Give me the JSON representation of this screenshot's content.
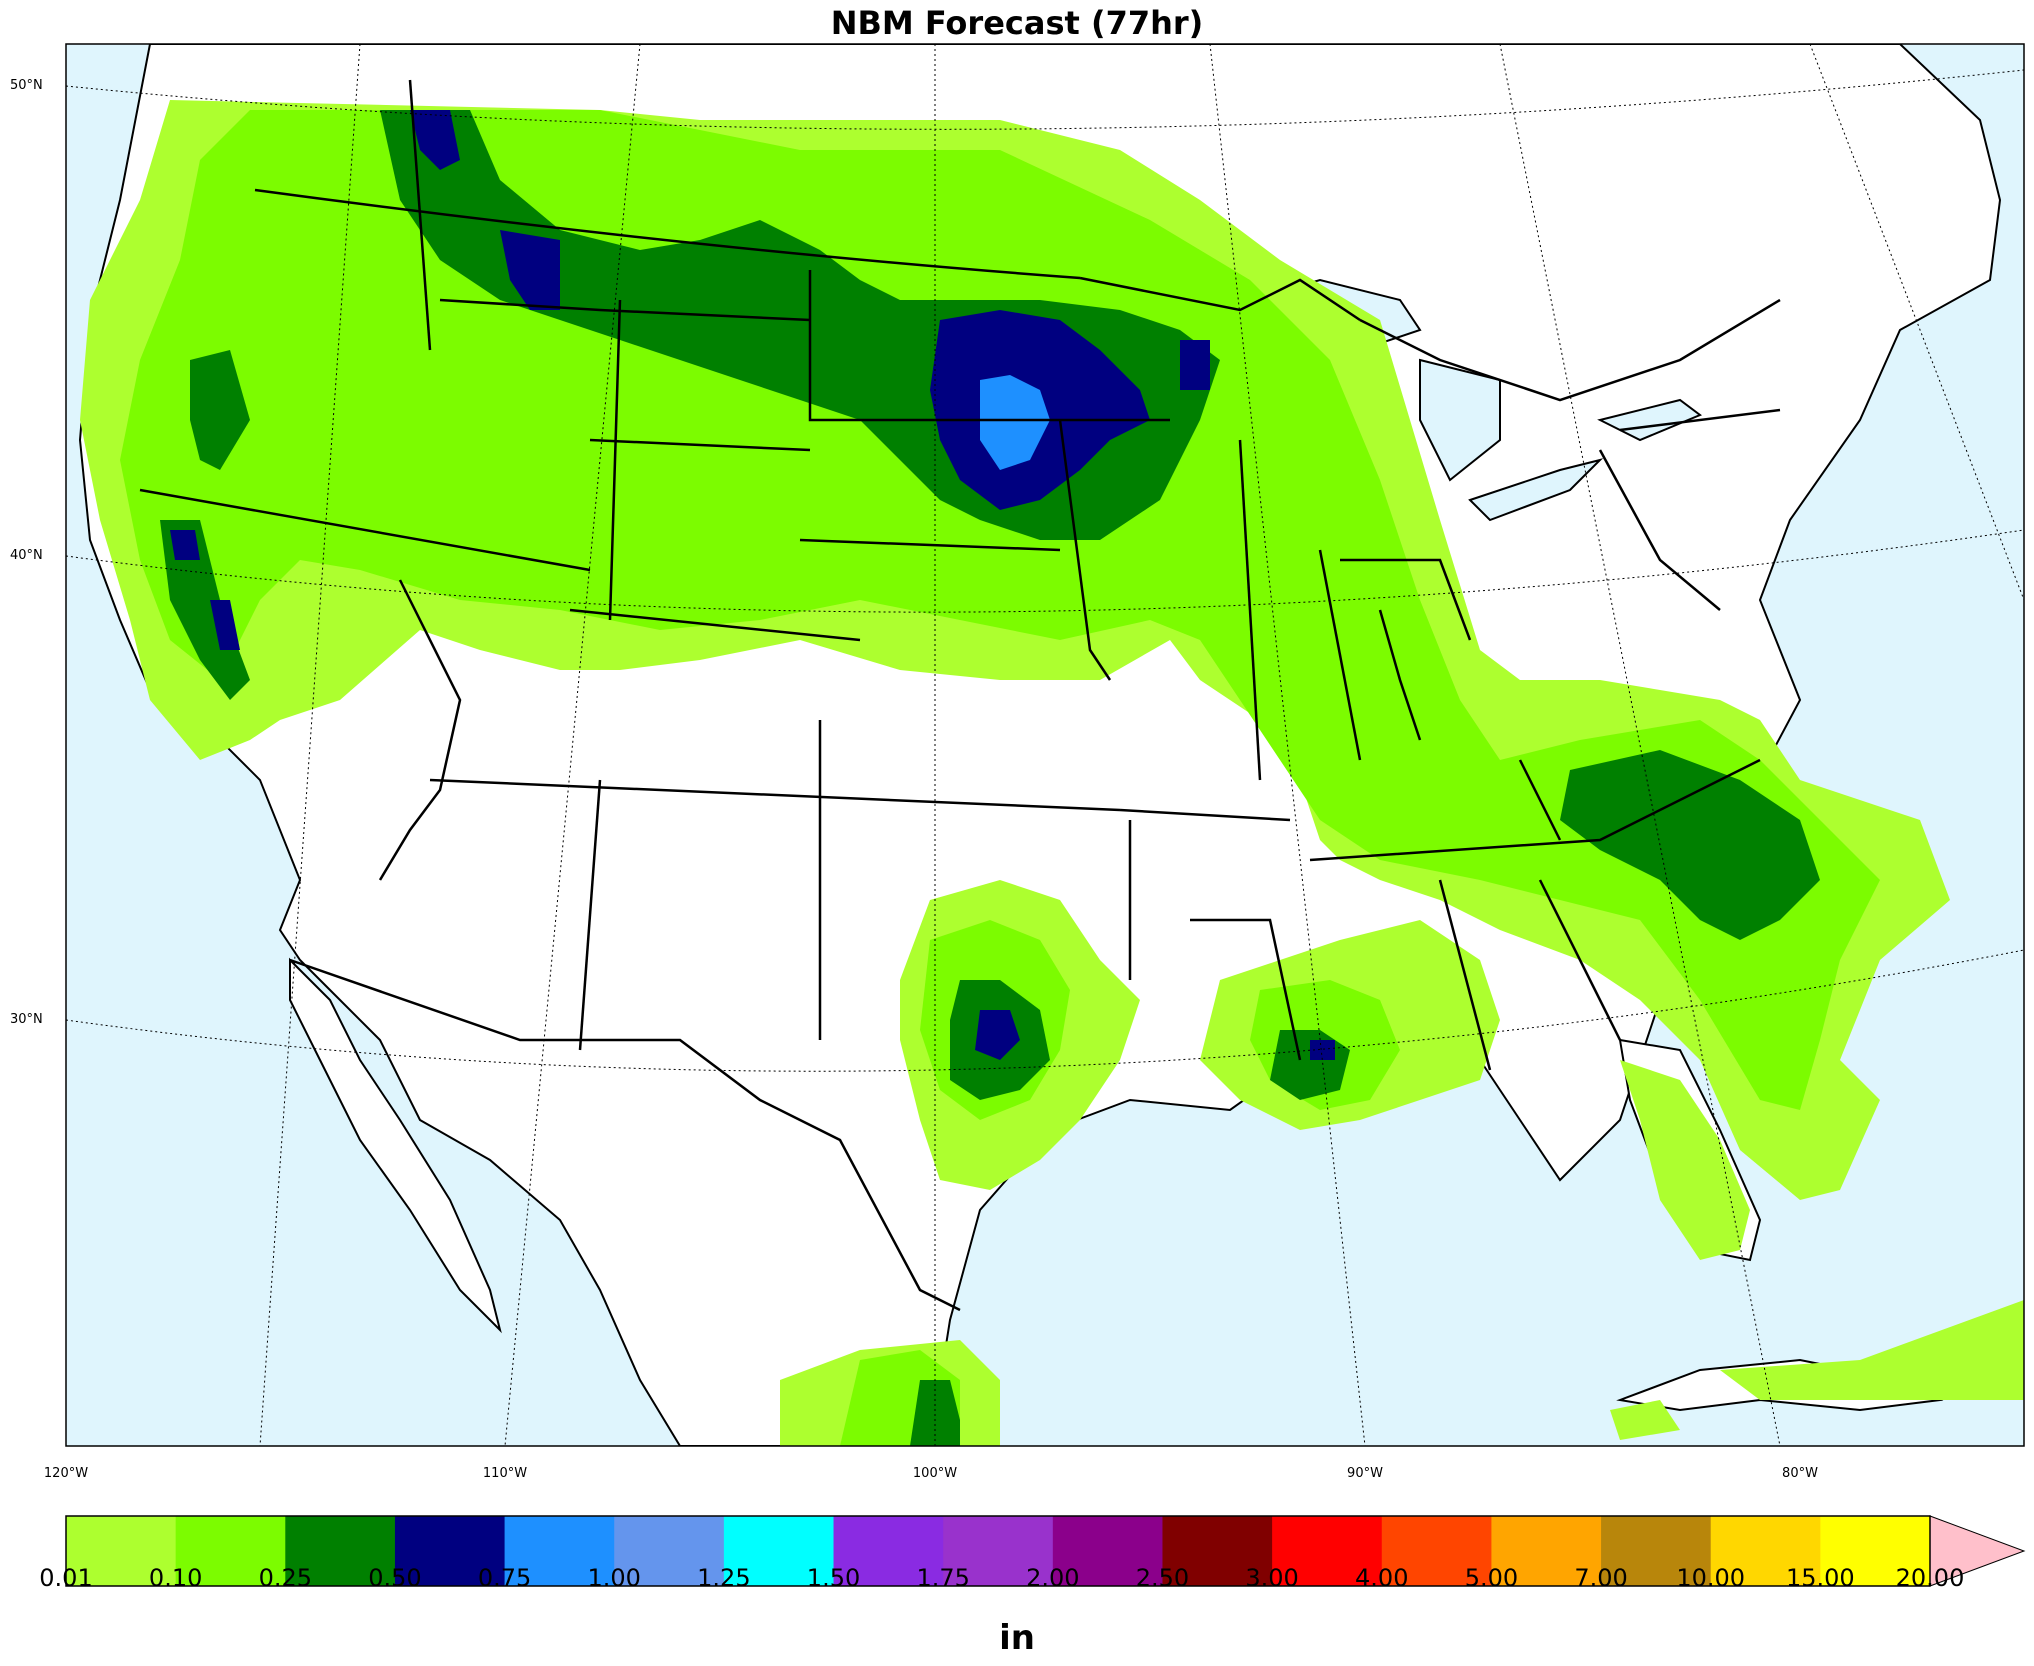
{
  "title": "NBM Forecast (77hr)",
  "lat_labels": [
    {
      "text": "50°N",
      "lat": 50
    },
    {
      "text": "40°N",
      "lat": 40
    },
    {
      "text": "30°N",
      "lat": 30
    }
  ],
  "lon_labels": [
    {
      "text": "120°W",
      "lon": -120
    },
    {
      "text": "110°W",
      "lon": -110
    },
    {
      "text": "100°W",
      "lon": -100
    },
    {
      "text": "90°W",
      "lon": -90
    },
    {
      "text": "80°W",
      "lon": -80
    }
  ],
  "colorbar": {
    "unit": "in",
    "ticks": [
      "0.01",
      "0.10",
      "0.25",
      "0.50",
      "0.75",
      "1.00",
      "1.25",
      "1.50",
      "1.75",
      "2.00",
      "2.50",
      "3.00",
      "4.00",
      "5.00",
      "7.00",
      "10.00",
      "15.00",
      "20.00"
    ],
    "colors": [
      "#adff2f",
      "#7cfc00",
      "#008000",
      "#000080",
      "#1e90ff",
      "#6495ed",
      "#00ffff",
      "#8a2be2",
      "#9932cc",
      "#8b008b",
      "#800000",
      "#ff0000",
      "#ff4500",
      "#ffa500",
      "#b8860b",
      "#ffd700",
      "#ffff00"
    ],
    "extend_color": "#ffc0cb"
  },
  "colors": {
    "ocean": "#dff5fd",
    "land": "#ffffff",
    "border": "#000000"
  }
}
